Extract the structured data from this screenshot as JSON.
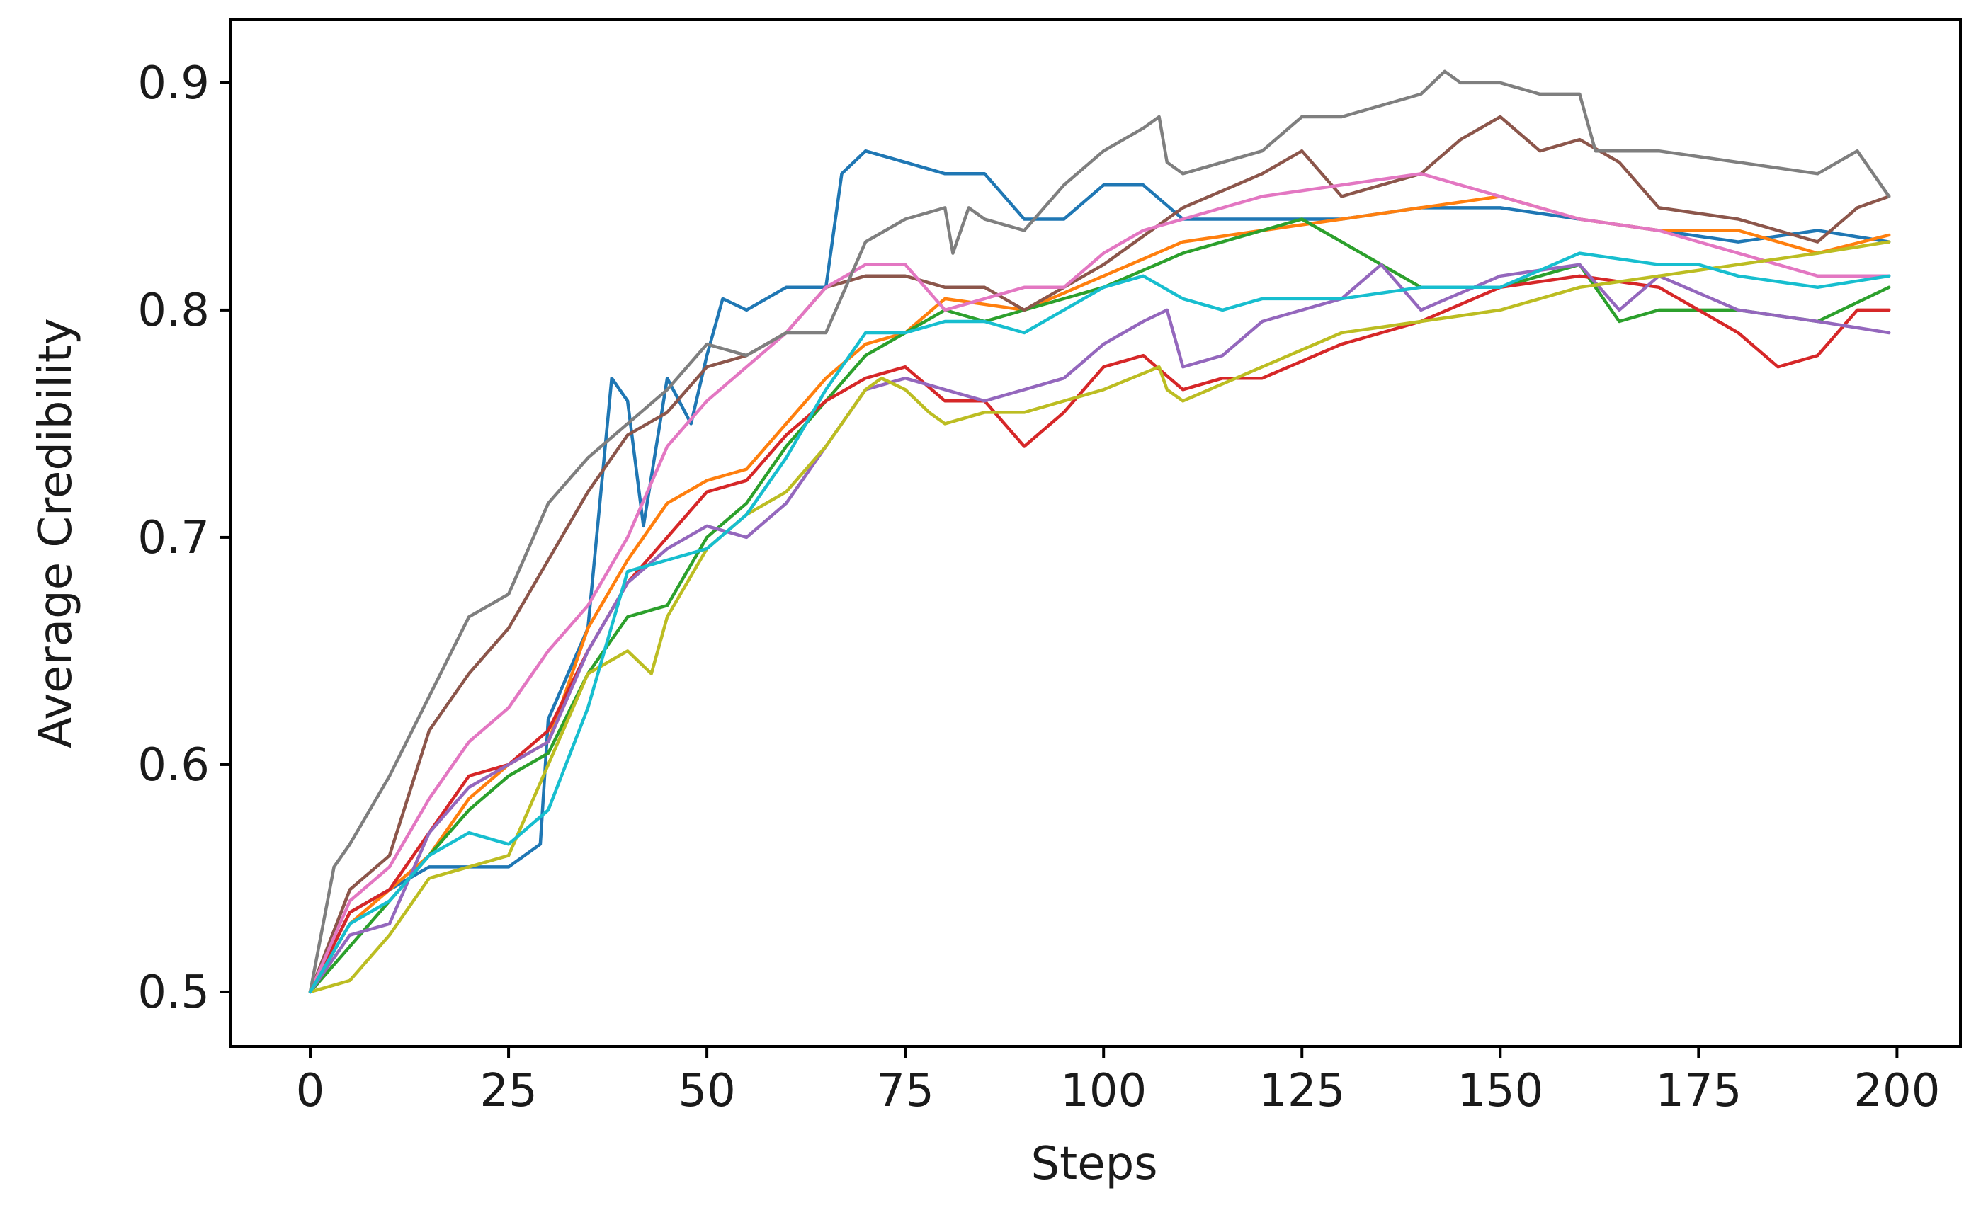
{
  "chart_data": {
    "type": "line",
    "xlabel": "Steps",
    "ylabel": "Average Credibility",
    "xlim": [
      -10,
      208
    ],
    "ylim": [
      0.476,
      0.928
    ],
    "xticks": [
      0,
      25,
      50,
      75,
      100,
      125,
      150,
      175,
      200
    ],
    "xtick_labels": [
      "0",
      "25",
      "50",
      "75",
      "100",
      "125",
      "150",
      "175",
      "200"
    ],
    "yticks": [
      0.5,
      0.6,
      0.7,
      0.8,
      0.9
    ],
    "ytick_labels": [
      "0.5",
      "0.6",
      "0.7",
      "0.8",
      "0.9"
    ],
    "grid": false,
    "series": [
      {
        "color": "#1f77b4",
        "x": [
          0,
          5,
          10,
          15,
          20,
          25,
          29,
          30,
          35,
          38,
          40,
          42,
          45,
          48,
          50,
          52,
          55,
          60,
          65,
          67,
          70,
          75,
          80,
          85,
          90,
          95,
          100,
          105,
          110,
          120,
          130,
          140,
          150,
          160,
          170,
          180,
          190,
          199
        ],
        "y": [
          0.5,
          0.535,
          0.545,
          0.555,
          0.555,
          0.555,
          0.565,
          0.62,
          0.66,
          0.77,
          0.76,
          0.705,
          0.77,
          0.75,
          0.78,
          0.805,
          0.8,
          0.81,
          0.81,
          0.86,
          0.87,
          0.865,
          0.86,
          0.86,
          0.84,
          0.84,
          0.855,
          0.855,
          0.84,
          0.84,
          0.84,
          0.845,
          0.845,
          0.84,
          0.835,
          0.83,
          0.835,
          0.83
        ]
      },
      {
        "color": "#ff7f0e",
        "x": [
          0,
          5,
          10,
          15,
          20,
          25,
          30,
          35,
          40,
          45,
          50,
          55,
          60,
          65,
          70,
          75,
          80,
          90,
          100,
          110,
          120,
          130,
          140,
          150,
          160,
          170,
          180,
          190,
          199
        ],
        "y": [
          0.5,
          0.53,
          0.545,
          0.56,
          0.585,
          0.6,
          0.61,
          0.66,
          0.69,
          0.715,
          0.725,
          0.73,
          0.75,
          0.77,
          0.785,
          0.79,
          0.805,
          0.8,
          0.815,
          0.83,
          0.835,
          0.84,
          0.845,
          0.85,
          0.84,
          0.835,
          0.835,
          0.825,
          0.833
        ]
      },
      {
        "color": "#2ca02c",
        "x": [
          0,
          5,
          10,
          15,
          20,
          25,
          30,
          35,
          40,
          45,
          50,
          55,
          60,
          65,
          70,
          75,
          80,
          85,
          90,
          100,
          110,
          120,
          125,
          130,
          140,
          150,
          160,
          165,
          170,
          180,
          190,
          199
        ],
        "y": [
          0.5,
          0.52,
          0.54,
          0.56,
          0.58,
          0.595,
          0.605,
          0.64,
          0.665,
          0.67,
          0.7,
          0.715,
          0.74,
          0.76,
          0.78,
          0.79,
          0.8,
          0.795,
          0.8,
          0.81,
          0.825,
          0.835,
          0.84,
          0.83,
          0.81,
          0.81,
          0.82,
          0.795,
          0.8,
          0.8,
          0.795,
          0.81
        ]
      },
      {
        "color": "#d62728",
        "x": [
          0,
          5,
          10,
          15,
          20,
          25,
          30,
          35,
          40,
          45,
          50,
          55,
          60,
          65,
          70,
          75,
          80,
          85,
          90,
          95,
          100,
          105,
          110,
          115,
          120,
          130,
          140,
          150,
          160,
          170,
          180,
          185,
          190,
          195,
          199
        ],
        "y": [
          0.5,
          0.535,
          0.545,
          0.57,
          0.595,
          0.6,
          0.615,
          0.65,
          0.68,
          0.7,
          0.72,
          0.725,
          0.745,
          0.76,
          0.77,
          0.775,
          0.76,
          0.76,
          0.74,
          0.755,
          0.775,
          0.78,
          0.765,
          0.77,
          0.77,
          0.785,
          0.795,
          0.81,
          0.815,
          0.81,
          0.79,
          0.775,
          0.78,
          0.8,
          0.8
        ]
      },
      {
        "color": "#9467bd",
        "x": [
          0,
          5,
          10,
          15,
          20,
          25,
          30,
          35,
          40,
          45,
          50,
          55,
          60,
          65,
          70,
          75,
          80,
          85,
          90,
          95,
          100,
          105,
          108,
          110,
          115,
          120,
          125,
          130,
          135,
          140,
          150,
          160,
          165,
          170,
          180,
          190,
          199
        ],
        "y": [
          0.5,
          0.525,
          0.53,
          0.57,
          0.59,
          0.6,
          0.61,
          0.65,
          0.68,
          0.695,
          0.705,
          0.7,
          0.715,
          0.74,
          0.765,
          0.77,
          0.765,
          0.76,
          0.765,
          0.77,
          0.785,
          0.795,
          0.8,
          0.775,
          0.78,
          0.795,
          0.8,
          0.805,
          0.82,
          0.8,
          0.815,
          0.82,
          0.8,
          0.815,
          0.8,
          0.795,
          0.79
        ]
      },
      {
        "color": "#8c564b",
        "x": [
          0,
          5,
          10,
          15,
          20,
          25,
          30,
          35,
          40,
          45,
          50,
          55,
          60,
          65,
          70,
          75,
          80,
          85,
          90,
          95,
          100,
          110,
          120,
          125,
          130,
          140,
          145,
          150,
          155,
          160,
          165,
          170,
          180,
          190,
          195,
          199
        ],
        "y": [
          0.5,
          0.545,
          0.56,
          0.615,
          0.64,
          0.66,
          0.69,
          0.72,
          0.745,
          0.755,
          0.775,
          0.78,
          0.79,
          0.81,
          0.815,
          0.815,
          0.81,
          0.81,
          0.8,
          0.81,
          0.82,
          0.845,
          0.86,
          0.87,
          0.85,
          0.86,
          0.875,
          0.885,
          0.87,
          0.875,
          0.865,
          0.845,
          0.84,
          0.83,
          0.845,
          0.85
        ]
      },
      {
        "color": "#e377c2",
        "x": [
          0,
          5,
          10,
          15,
          20,
          25,
          30,
          35,
          40,
          45,
          50,
          55,
          60,
          65,
          70,
          75,
          80,
          85,
          90,
          95,
          100,
          105,
          110,
          120,
          130,
          140,
          150,
          160,
          170,
          180,
          190,
          199
        ],
        "y": [
          0.5,
          0.54,
          0.555,
          0.585,
          0.61,
          0.625,
          0.65,
          0.67,
          0.7,
          0.74,
          0.76,
          0.775,
          0.79,
          0.81,
          0.82,
          0.82,
          0.8,
          0.805,
          0.81,
          0.81,
          0.825,
          0.835,
          0.84,
          0.85,
          0.855,
          0.86,
          0.85,
          0.84,
          0.835,
          0.825,
          0.815,
          0.815
        ]
      },
      {
        "color": "#7f7f7f",
        "x": [
          0,
          3,
          5,
          10,
          15,
          20,
          25,
          30,
          35,
          40,
          45,
          50,
          55,
          60,
          65,
          70,
          75,
          80,
          81,
          83,
          85,
          90,
          95,
          100,
          105,
          107,
          108,
          110,
          115,
          120,
          125,
          130,
          135,
          140,
          143,
          145,
          150,
          155,
          160,
          162,
          165,
          170,
          180,
          190,
          195,
          199
        ],
        "y": [
          0.5,
          0.555,
          0.565,
          0.595,
          0.63,
          0.665,
          0.675,
          0.715,
          0.735,
          0.75,
          0.765,
          0.785,
          0.78,
          0.79,
          0.79,
          0.83,
          0.84,
          0.845,
          0.825,
          0.845,
          0.84,
          0.835,
          0.855,
          0.87,
          0.88,
          0.885,
          0.865,
          0.86,
          0.865,
          0.87,
          0.885,
          0.885,
          0.89,
          0.895,
          0.905,
          0.9,
          0.9,
          0.895,
          0.895,
          0.87,
          0.87,
          0.87,
          0.865,
          0.86,
          0.87,
          0.85
        ]
      },
      {
        "color": "#bcbd22",
        "x": [
          0,
          5,
          10,
          15,
          20,
          25,
          30,
          35,
          40,
          43,
          45,
          50,
          55,
          60,
          65,
          70,
          72,
          75,
          78,
          80,
          85,
          90,
          100,
          107,
          108,
          110,
          120,
          130,
          140,
          150,
          160,
          170,
          180,
          190,
          199
        ],
        "y": [
          0.5,
          0.505,
          0.525,
          0.55,
          0.555,
          0.56,
          0.6,
          0.64,
          0.65,
          0.64,
          0.665,
          0.695,
          0.71,
          0.72,
          0.74,
          0.765,
          0.77,
          0.765,
          0.755,
          0.75,
          0.755,
          0.755,
          0.765,
          0.775,
          0.765,
          0.76,
          0.775,
          0.79,
          0.795,
          0.8,
          0.81,
          0.815,
          0.82,
          0.825,
          0.83
        ]
      },
      {
        "color": "#17becf",
        "x": [
          0,
          5,
          10,
          15,
          20,
          25,
          30,
          35,
          40,
          45,
          50,
          55,
          60,
          65,
          70,
          75,
          80,
          85,
          90,
          100,
          105,
          110,
          115,
          120,
          130,
          140,
          145,
          150,
          160,
          170,
          175,
          180,
          190,
          199
        ],
        "y": [
          0.5,
          0.53,
          0.54,
          0.56,
          0.57,
          0.565,
          0.58,
          0.625,
          0.685,
          0.69,
          0.695,
          0.71,
          0.735,
          0.765,
          0.79,
          0.79,
          0.795,
          0.795,
          0.79,
          0.81,
          0.815,
          0.805,
          0.8,
          0.805,
          0.805,
          0.81,
          0.81,
          0.81,
          0.825,
          0.82,
          0.82,
          0.815,
          0.81,
          0.815
        ]
      }
    ]
  }
}
